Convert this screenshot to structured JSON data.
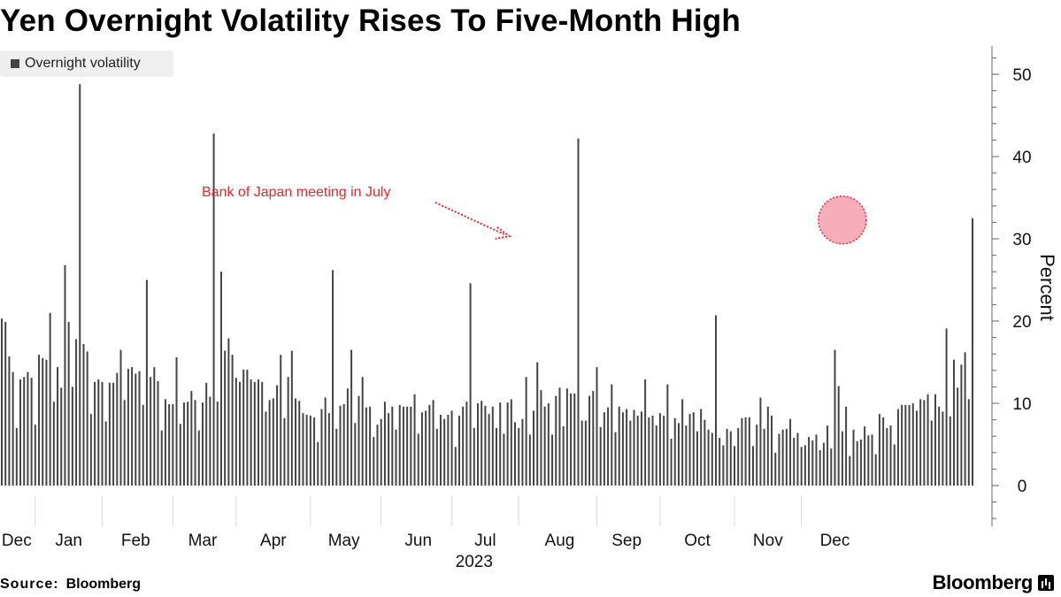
{
  "title": "Yen Overnight Volatility Rises To Five-Month High",
  "legend": {
    "label": "Overnight volatility",
    "color": "#444444"
  },
  "footer": {
    "source_label": "Source:",
    "source_value": "Bloomberg",
    "brand": "Bloomberg"
  },
  "colors": {
    "bar": "#444444",
    "annotation": "#e8262e",
    "highlight_fill": "#f7a0ae",
    "highlight_stroke": "#e8262e",
    "axis": "#666666",
    "grid": "#d9d9d9"
  },
  "chart_data": {
    "type": "bar",
    "title": "Yen Overnight Volatility Rises To Five-Month High",
    "ylabel": "Percent",
    "xlabel": "2023",
    "ylim": [
      -5,
      54
    ],
    "yticks": [
      0,
      10,
      20,
      30,
      40,
      50
    ],
    "months": [
      {
        "label": "Dec",
        "index": 4
      },
      {
        "label": "Jan",
        "index": 18
      },
      {
        "label": "Feb",
        "index": 36
      },
      {
        "label": "Mar",
        "index": 54
      },
      {
        "label": "Apr",
        "index": 73
      },
      {
        "label": "May",
        "index": 92
      },
      {
        "label": "Jun",
        "index": 112
      },
      {
        "label": "Jul",
        "index": 130
      },
      {
        "label": "Aug",
        "index": 150
      },
      {
        "label": "Sep",
        "index": 168
      },
      {
        "label": "Oct",
        "index": 187
      },
      {
        "label": "Nov",
        "index": 206
      },
      {
        "label": "Dec",
        "index": 224
      }
    ],
    "year_label": "2023",
    "annotation": {
      "text": "Bank of Japan meeting in July",
      "target_index": 137,
      "target_value": 30
    },
    "highlight": {
      "index": 226,
      "value": 32.5
    },
    "series": [
      {
        "name": "Overnight volatility",
        "values": [
          20.3,
          19.9,
          15.7,
          13.8,
          7.0,
          12.9,
          13.2,
          13.8,
          13.1,
          7.4,
          15.9,
          15.5,
          15.3,
          21.0,
          10.2,
          14.4,
          11.9,
          26.8,
          19.9,
          12.0,
          17.8,
          48.8,
          17.2,
          16.3,
          8.7,
          12.6,
          12.9,
          12.6,
          7.8,
          12.5,
          12.5,
          13.7,
          16.5,
          10.4,
          14.2,
          14.4,
          13.6,
          13.9,
          9.8,
          25.0,
          13.2,
          14.4,
          12.7,
          6.7,
          10.5,
          9.9,
          9.9,
          15.6,
          7.5,
          10.1,
          10.2,
          11.5,
          10.4,
          6.7,
          10.1,
          12.5,
          10.8,
          42.8,
          10.2,
          26.0,
          16.4,
          17.9,
          15.9,
          13.1,
          12.6,
          14.1,
          14.1,
          12.9,
          12.6,
          12.9,
          12.6,
          9.0,
          10.4,
          10.6,
          12.2,
          15.9,
          8.2,
          13.2,
          16.4,
          10.6,
          10.3,
          8.8,
          8.6,
          8.5,
          8.3,
          5.3,
          9.3,
          10.7,
          8.8,
          26.2,
          6.9,
          9.7,
          9.9,
          11.8,
          16.5,
          7.6,
          10.9,
          13.2,
          9.5,
          9.6,
          5.9,
          7.4,
          8.1,
          10.2,
          8.8,
          9.6,
          6.8,
          9.8,
          9.6,
          9.6,
          9.6,
          11.1,
          6.3,
          8.9,
          9.1,
          9.8,
          10.4,
          6.9,
          8.6,
          8.1,
          8.6,
          9.1,
          4.7,
          8.5,
          9.6,
          10.2,
          24.6,
          7.0,
          10.0,
          10.3,
          9.7,
          8.7,
          9.6,
          7.0,
          10.1,
          6.3,
          10.1,
          10.5,
          7.7,
          7.0,
          8.1,
          13.2,
          6.2,
          9.1,
          15.0,
          11.6,
          9.6,
          10.0,
          6.2,
          10.9,
          11.9,
          7.2,
          11.8,
          11.2,
          11.2,
          42.2,
          7.9,
          7.9,
          10.9,
          11.5,
          14.4,
          7.1,
          8.9,
          9.5,
          12.3,
          6.5,
          9.6,
          8.9,
          9.3,
          7.9,
          9.2,
          8.5,
          9.0,
          12.9,
          8.3,
          8.5,
          7.3,
          8.8,
          8.5,
          12.3,
          5.7,
          8.2,
          7.6,
          10.5,
          7.3,
          8.7,
          8.9,
          6.6,
          9.3,
          8.0,
          6.8,
          6.4,
          20.7,
          5.8,
          4.9,
          6.9,
          6.6,
          4.8,
          7.0,
          8.2,
          8.3,
          8.3,
          4.8,
          7.4,
          10.7,
          6.9,
          9.6,
          8.5,
          4.0,
          6.3,
          6.8,
          6.9,
          8.1,
          5.8,
          6.4,
          4.7,
          4.9,
          5.9,
          5.5,
          6.2,
          4.3,
          5.2,
          7.3,
          4.5,
          16.5,
          12.1,
          6.6,
          9.6,
          3.6,
          6.8,
          5.4,
          5.6,
          7.2,
          6.1,
          6.2,
          3.8,
          8.7,
          8.3,
          7.0,
          7.3,
          5.0,
          9.3,
          9.8,
          9.8,
          9.8,
          10.0,
          9.1,
          10.5,
          10.4,
          11.1,
          7.9,
          11.1,
          9.6,
          9.0,
          19.1,
          8.4,
          15.3,
          11.9,
          14.7,
          16.2,
          10.5,
          32.5
        ]
      }
    ]
  }
}
